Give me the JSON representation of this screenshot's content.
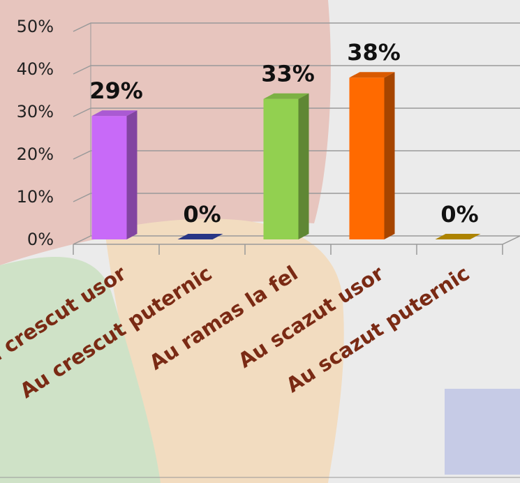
{
  "chart_data": {
    "type": "bar3d",
    "categories": [
      "Au crescut usor",
      "Au crescut puternic",
      "Au ramas la fel",
      "Au scazut usor",
      "Au scazut puternic"
    ],
    "series": [
      {
        "values": [
          29,
          0,
          33,
          38,
          0
        ],
        "value_labels": [
          "29%",
          "0%",
          "33%",
          "38%",
          "0%"
        ],
        "colors": [
          "#c86af8",
          "#2f3f9e",
          "#92d050",
          "#ff6a00",
          "#cc9a00"
        ]
      }
    ],
    "ylim": [
      0,
      50
    ],
    "yticks": [
      {
        "value": 0,
        "label": "0%"
      },
      {
        "value": 10,
        "label": "10%"
      },
      {
        "value": 20,
        "label": "20%"
      },
      {
        "value": 30,
        "label": "30%"
      },
      {
        "value": 40,
        "label": "40%"
      },
      {
        "value": 50,
        "label": "50%"
      }
    ],
    "grid": true
  }
}
